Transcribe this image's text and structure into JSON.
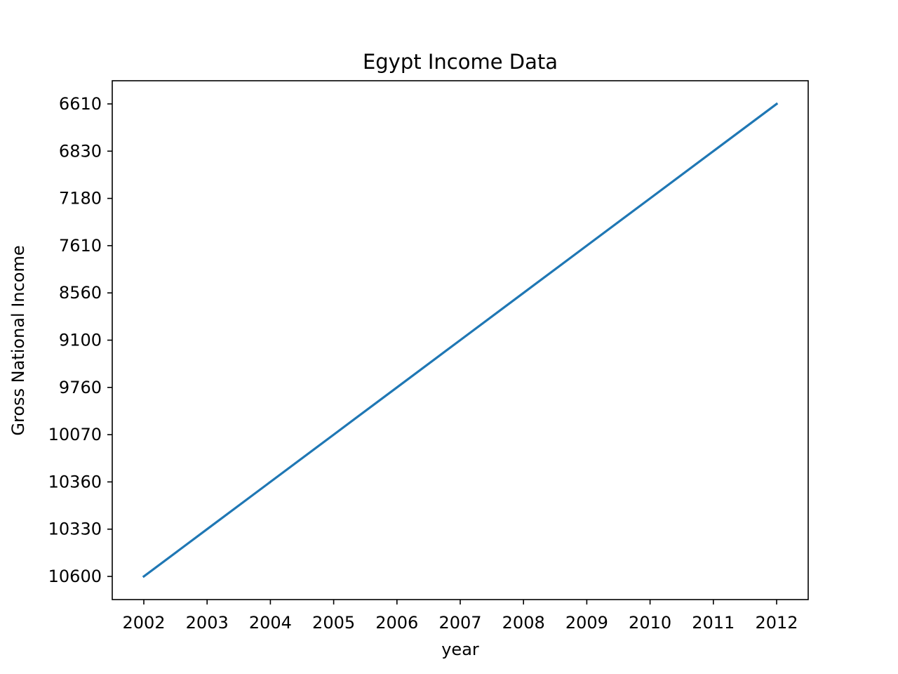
{
  "chart_data": {
    "type": "line",
    "title": "Egypt Income Data",
    "xlabel": "year",
    "ylabel": "Gross National Income",
    "x": [
      2002,
      2003,
      2004,
      2005,
      2006,
      2007,
      2008,
      2009,
      2010,
      2011,
      2012
    ],
    "y_categories": [
      "10600",
      "10330",
      "10360",
      "10070",
      "9760",
      "9100",
      "8560",
      "7610",
      "7180",
      "6830",
      "6610"
    ],
    "series": [
      {
        "values": [
          "10600",
          "10330",
          "10360",
          "10070",
          "9760",
          "9100",
          "8560",
          "7610",
          "7180",
          "6830",
          "6610"
        ],
        "color": "#1f77b4"
      }
    ],
    "grid": false,
    "legend": "none"
  }
}
